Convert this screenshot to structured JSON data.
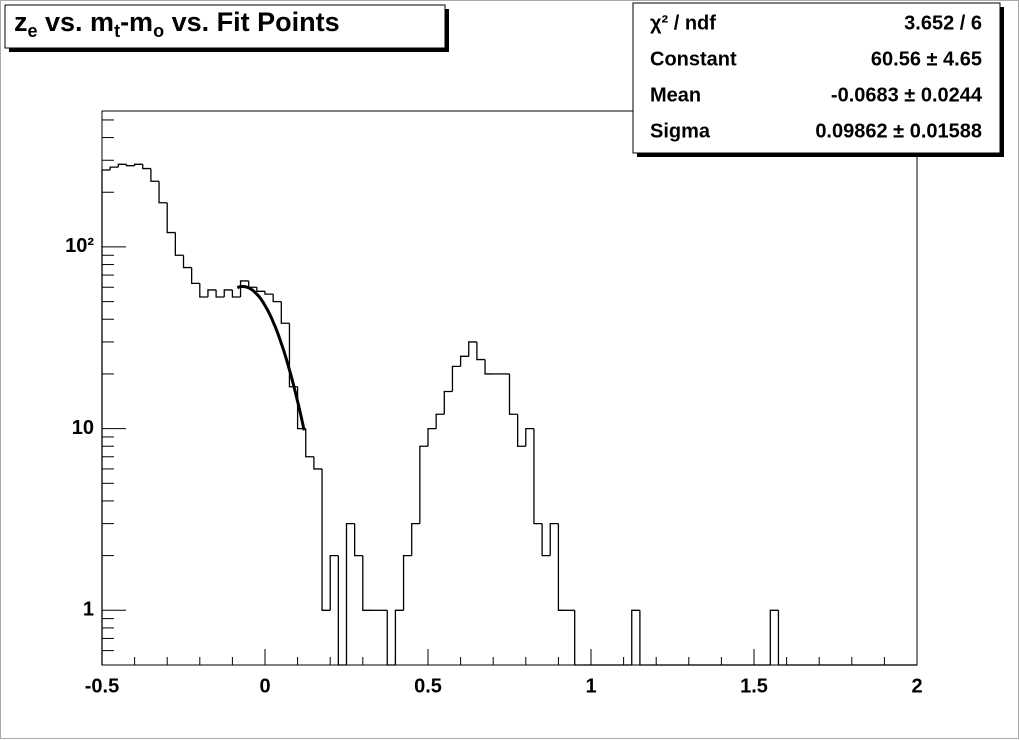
{
  "chart_data": {
    "type": "histogram",
    "title": [
      "z",
      "e",
      " vs. m",
      "t",
      "-m",
      "o",
      " vs. Fit Points"
    ],
    "stats": [
      {
        "name": "χ² / ndf",
        "value": "3.652 / 6"
      },
      {
        "name": "Constant",
        "value": "60.56 ± 4.65"
      },
      {
        "name": "Mean",
        "value": "-0.0683 ± 0.0244"
      },
      {
        "name": "Sigma",
        "value": "0.09862 ± 0.01588"
      }
    ],
    "fit": {
      "constant": 60.56,
      "mean": -0.0683,
      "sigma": 0.09862,
      "range": [
        -0.085,
        0.12
      ]
    },
    "bins": [
      -0.5,
      -0.475,
      -0.45,
      -0.425,
      -0.4,
      -0.375,
      -0.35,
      -0.325,
      -0.3,
      -0.275,
      -0.25,
      -0.225,
      -0.2,
      -0.175,
      -0.15,
      -0.125,
      -0.1,
      -0.075,
      -0.05,
      -0.025,
      0,
      0.025,
      0.05,
      0.075,
      0.1,
      0.125,
      0.15,
      0.175,
      0.2,
      0.225,
      0.25,
      0.275,
      0.3,
      0.325,
      0.35,
      0.375,
      0.4,
      0.425,
      0.45,
      0.475,
      0.5,
      0.525,
      0.55,
      0.575,
      0.6,
      0.625,
      0.65,
      0.675,
      0.7,
      0.725,
      0.75,
      0.775,
      0.8,
      0.825,
      0.85,
      0.875,
      0.9,
      0.925,
      0.95,
      0.975,
      1,
      1.025,
      1.05,
      1.075,
      1.1,
      1.125,
      1.15,
      1.175,
      1.2,
      1.225,
      1.25,
      1.275,
      1.3,
      1.325,
      1.35,
      1.375,
      1.4,
      1.425,
      1.45,
      1.475,
      1.5,
      1.525,
      1.55,
      1.575,
      1.6,
      1.625,
      1.65,
      1.675,
      1.7,
      1.725,
      1.75,
      1.775,
      1.8,
      1.825,
      1.85,
      1.875,
      1.9,
      1.925,
      1.95,
      1.975,
      2
    ],
    "values": [
      265,
      275,
      285,
      280,
      285,
      270,
      230,
      175,
      120,
      90,
      77,
      63,
      53,
      58,
      53,
      58,
      53,
      65,
      60,
      57,
      55,
      50,
      38,
      17,
      10,
      7,
      6,
      1,
      2,
      0,
      3,
      2,
      1,
      1,
      1,
      0,
      1,
      2,
      3,
      8,
      10,
      12,
      16,
      22,
      25,
      30,
      24,
      20,
      20,
      20,
      12,
      8,
      10,
      3,
      2,
      3,
      1,
      1,
      0,
      0,
      0,
      0,
      0,
      0,
      0,
      1,
      0,
      0,
      0,
      0,
      0,
      0,
      0,
      0,
      0,
      0,
      0,
      0,
      0,
      0,
      0,
      0,
      1,
      0,
      0,
      0,
      0,
      0,
      0,
      0,
      0,
      0,
      0,
      0,
      0,
      0,
      0,
      0,
      0,
      0
    ],
    "color": "#000000",
    "xlim": [
      -0.5,
      2
    ],
    "xticks": [
      -0.5,
      0,
      0.5,
      1,
      1.5,
      2
    ],
    "xminorticks": [
      -0.4,
      -0.3,
      -0.2,
      -0.1,
      0.1,
      0.2,
      0.3,
      0.4,
      0.6,
      0.7,
      0.8,
      0.9,
      1.1,
      1.2,
      1.3,
      1.4,
      1.6,
      1.7,
      1.8,
      1.9
    ],
    "ylim": [
      0.5,
      560
    ],
    "ylog": true,
    "yticks": [
      1,
      10,
      {
        "value": 100,
        "label": "10²"
      }
    ],
    "yminorticks": [
      0.6,
      0.7,
      0.8,
      0.9,
      2,
      3,
      4,
      5,
      6,
      7,
      8,
      9,
      20,
      30,
      40,
      50,
      60,
      70,
      80,
      90,
      200,
      300,
      400,
      500
    ]
  }
}
